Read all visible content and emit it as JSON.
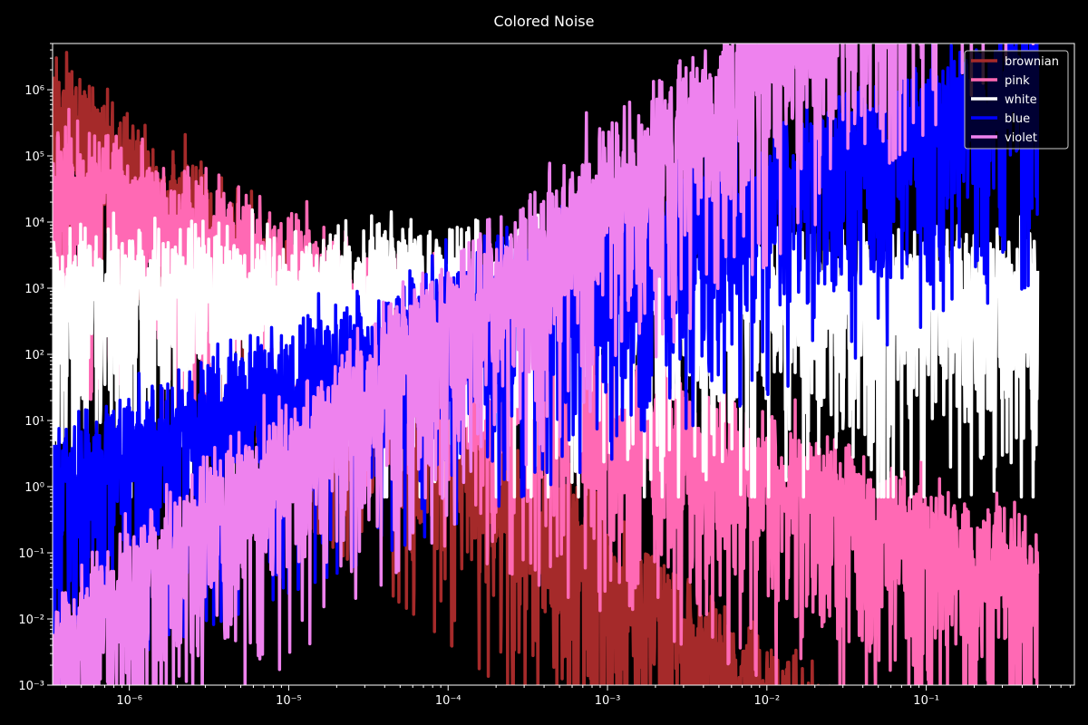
{
  "chart_data": {
    "type": "line",
    "title": "Colored Noise",
    "xlabel": "",
    "ylabel": "",
    "xscale": "log",
    "yscale": "log",
    "xlim": [
      3.3e-07,
      0.85
    ],
    "ylim": [
      0.001,
      5000000
    ],
    "grid": false,
    "legend_position": "top-right",
    "background": "#000000",
    "x_tick_labels": [
      "10⁻⁶",
      "10⁻⁵",
      "10⁻⁴",
      "10⁻³",
      "10⁻²",
      "10⁻¹"
    ],
    "x_tick_values": [
      1e-06,
      1e-05,
      0.0001,
      0.001,
      0.01,
      0.1
    ],
    "y_tick_labels": [
      "10⁻³",
      "10⁻²",
      "10⁻¹",
      "10⁰",
      "10¹",
      "10²",
      "10³",
      "10⁴",
      "10⁵",
      "10⁶"
    ],
    "y_tick_values": [
      0.001,
      0.01,
      0.1,
      1,
      10,
      100,
      1000,
      10000,
      100000,
      1000000
    ],
    "x_range": [
      3.3e-07,
      0.5
    ],
    "series": [
      {
        "name": "brownian",
        "color": "#a52a2a",
        "start_value": 570000,
        "slope": -2,
        "noise": "chi2"
      },
      {
        "name": "pink",
        "color": "#ff69b4",
        "start_value": 52000,
        "slope": -1,
        "noise": "chi2"
      },
      {
        "name": "white",
        "color": "#ffffff",
        "start_value": 1000,
        "slope": 0,
        "noise": "chi2"
      },
      {
        "name": "blue",
        "color": "#0000ff",
        "start_value": 1.15,
        "slope": 1,
        "noise": "chi2"
      },
      {
        "name": "violet",
        "color": "#ee82ee",
        "start_value": 0.0035,
        "slope": 2,
        "noise": "chi2"
      }
    ]
  }
}
